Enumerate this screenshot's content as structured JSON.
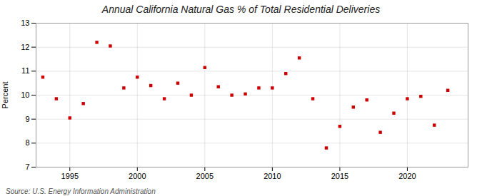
{
  "chart_data": {
    "type": "scatter",
    "title": "Annual California Natural Gas % of Total Residential Deliveries",
    "ylabel": "Percent",
    "source": "Source: U.S. Energy Information Administration",
    "x": [
      1993,
      1994,
      1995,
      1996,
      1997,
      1998,
      1999,
      2000,
      2001,
      2002,
      2003,
      2004,
      2005,
      2006,
      2007,
      2008,
      2009,
      2010,
      2011,
      2012,
      2013,
      2014,
      2015,
      2016,
      2017,
      2018,
      2019,
      2020,
      2021,
      2022,
      2023
    ],
    "values": [
      10.75,
      9.85,
      9.05,
      9.65,
      12.2,
      12.05,
      10.3,
      10.75,
      10.4,
      9.85,
      10.5,
      10.0,
      11.15,
      10.35,
      10.0,
      10.05,
      10.3,
      10.3,
      10.9,
      11.55,
      9.85,
      7.8,
      8.7,
      9.5,
      9.8,
      8.45,
      9.25,
      9.85,
      9.95,
      8.75,
      10.2
    ],
    "color": "#cc0000",
    "marker": "square",
    "xlim": [
      1992.5,
      2024.5
    ],
    "ylim": [
      7,
      13
    ],
    "xticks": [
      1995,
      2000,
      2005,
      2010,
      2015,
      2020
    ],
    "yticks": [
      7,
      8,
      9,
      10,
      11,
      12,
      13
    ],
    "grid": true
  }
}
